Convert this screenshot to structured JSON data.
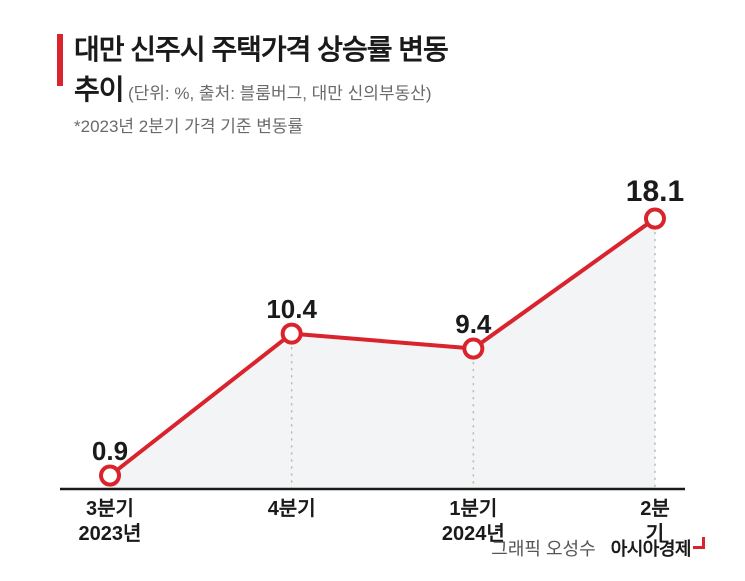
{
  "title_line1": "대만 신주시 주택가격 상승률 변동",
  "title_line2_prefix": "추이",
  "subtitle": "(단위: %, 출처: 블룸버그, 대만 신의부동산)",
  "footnote": "*2023년 2분기 가격 기준 변동률",
  "title_fontsize": 28,
  "subtitle_fontsize": 17,
  "footnote_fontsize": 17,
  "title_color": "#1a1a1a",
  "subtitle_color": "#6a6a6a",
  "accent_color": "#d9232d",
  "chart": {
    "type": "line",
    "background_color": "#ffffff",
    "line_color": "#d9232d",
    "line_width": 4,
    "marker_fill": "#ffffff",
    "marker_stroke": "#d9232d",
    "marker_radius": 9,
    "marker_stroke_width": 4,
    "guide_color": "#bdbdbd",
    "guide_dash": "1 6",
    "guide_width": 1.6,
    "baseline_color": "#1a1a1a",
    "baseline_width": 2.5,
    "area_fill": "#f3f4f5",
    "ylim": [
      0,
      20
    ],
    "value_fontsize": 26,
    "value_fontsize_last": 30,
    "xlabel_fontsize": 20,
    "points": [
      {
        "label_top": "3분기",
        "label_bottom": "2023년",
        "value": 0.9,
        "bold": false
      },
      {
        "label_top": "4분기",
        "label_bottom": "",
        "value": 10.4,
        "bold": false
      },
      {
        "label_top": "1분기",
        "label_bottom": "2024년",
        "value": 9.4,
        "bold": false
      },
      {
        "label_top": "2분기",
        "label_bottom": "",
        "value": 18.1,
        "bold": true
      }
    ]
  },
  "credit_prefix": "그래픽 오성수",
  "credit_brand": "아시아경제",
  "credit_fontsize": 18
}
